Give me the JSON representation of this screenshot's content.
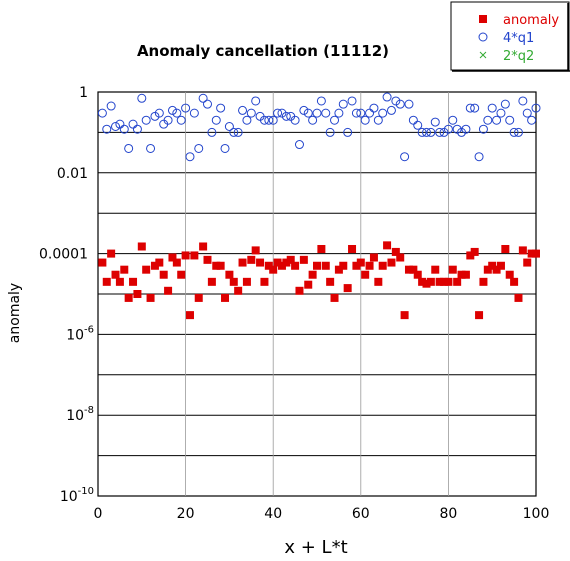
{
  "chart_data": {
    "type": "scatter",
    "title": "Anomaly cancellation (11112)",
    "xlabel": "x + L*t",
    "ylabel": "anomaly",
    "xlim": [
      0,
      100
    ],
    "ylim": [
      1e-10,
      1
    ],
    "yscale": "log",
    "x_ticks": [
      "0",
      "20",
      "40",
      "60",
      "80",
      "100"
    ],
    "y_ticks": [
      {
        "base": "1",
        "exp": ""
      },
      {
        "base": "0.01",
        "exp": ""
      },
      {
        "base": "0.0001",
        "exp": ""
      },
      {
        "base": "10",
        "exp": "-6"
      },
      {
        "base": "10",
        "exp": "-8"
      },
      {
        "base": "10",
        "exp": "-10"
      }
    ],
    "grid": true,
    "legend": "top-right",
    "series": [
      {
        "name": "anomaly",
        "marker": "filled-square",
        "color": "#dd0000",
        "x": [
          1,
          2,
          3,
          4,
          5,
          6,
          7,
          8,
          9,
          10,
          11,
          12,
          13,
          14,
          15,
          16,
          17,
          18,
          19,
          20,
          21,
          22,
          23,
          24,
          25,
          26,
          27,
          28,
          29,
          30,
          31,
          32,
          33,
          34,
          35,
          36,
          37,
          38,
          39,
          40,
          41,
          42,
          43,
          44,
          45,
          46,
          47,
          48,
          49,
          50,
          51,
          52,
          53,
          54,
          55,
          56,
          57,
          58,
          59,
          60,
          61,
          62,
          63,
          64,
          65,
          66,
          67,
          68,
          69,
          70,
          71,
          72,
          73,
          74,
          75,
          76,
          77,
          78,
          79,
          80,
          81,
          82,
          83,
          84,
          85,
          86,
          87,
          88,
          89,
          90,
          91,
          92,
          93,
          94,
          95,
          96,
          97,
          98,
          99,
          100
        ],
        "y": [
          6e-05,
          2e-05,
          0.0001,
          3e-05,
          2e-05,
          4e-05,
          8e-06,
          2e-05,
          1e-05,
          0.00015,
          4e-05,
          8e-06,
          5e-05,
          6e-05,
          3e-05,
          1.2e-05,
          8e-05,
          6e-05,
          3e-05,
          9e-05,
          3e-06,
          9e-05,
          8e-06,
          0.00015,
          7e-05,
          2e-05,
          5e-05,
          5e-05,
          8e-06,
          3e-05,
          2e-05,
          1.2e-05,
          6e-05,
          2e-05,
          7e-05,
          0.00012,
          6e-05,
          2e-05,
          5e-05,
          4e-05,
          6e-05,
          5e-05,
          6e-05,
          7e-05,
          5e-05,
          1.2e-05,
          7e-05,
          1.7e-05,
          3e-05,
          5e-05,
          0.00013,
          5e-05,
          2e-05,
          8e-06,
          4e-05,
          5e-05,
          1.4e-05,
          0.00013,
          5e-05,
          6e-05,
          3e-05,
          5e-05,
          8e-05,
          2e-05,
          5e-05,
          0.00016,
          6e-05,
          0.00011,
          8e-05,
          3e-06,
          4e-05,
          4e-05,
          3e-05,
          2e-05,
          1.8e-05,
          2e-05,
          4e-05,
          2e-05,
          2e-05,
          2e-05,
          4e-05,
          2e-05,
          3e-05,
          3e-05,
          9e-05,
          0.00011,
          3e-06,
          2e-05,
          4e-05,
          5e-05,
          4e-05,
          5e-05,
          0.00013,
          3e-05,
          2e-05,
          8e-06,
          0.00012,
          6e-05,
          0.0001,
          0.0001
        ]
      },
      {
        "name": "4*q1",
        "marker": "open-circle",
        "color": "#2244cc",
        "x": [
          1,
          2,
          3,
          4,
          5,
          6,
          7,
          8,
          9,
          10,
          11,
          12,
          13,
          14,
          15,
          16,
          17,
          18,
          19,
          20,
          21,
          22,
          23,
          24,
          25,
          26,
          27,
          28,
          29,
          30,
          31,
          32,
          33,
          34,
          35,
          36,
          37,
          38,
          39,
          40,
          41,
          42,
          43,
          44,
          45,
          46,
          47,
          48,
          49,
          50,
          51,
          52,
          53,
          54,
          55,
          56,
          57,
          58,
          59,
          60,
          61,
          62,
          63,
          64,
          65,
          66,
          67,
          68,
          69,
          70,
          71,
          72,
          73,
          74,
          75,
          76,
          77,
          78,
          79,
          80,
          81,
          82,
          83,
          84,
          85,
          86,
          87,
          88,
          89,
          90,
          91,
          92,
          93,
          94,
          95,
          96,
          97,
          98,
          99,
          100
        ],
        "y": [
          0.3,
          0.12,
          0.45,
          0.14,
          0.16,
          0.12,
          0.04,
          0.16,
          0.12,
          0.7,
          0.2,
          0.04,
          0.25,
          0.3,
          0.16,
          0.2,
          0.35,
          0.3,
          0.2,
          0.4,
          0.025,
          0.3,
          0.04,
          0.7,
          0.5,
          0.1,
          0.2,
          0.4,
          0.04,
          0.14,
          0.1,
          0.1,
          0.35,
          0.2,
          0.3,
          0.6,
          0.25,
          0.2,
          0.2,
          0.2,
          0.3,
          0.3,
          0.25,
          0.25,
          0.2,
          0.05,
          0.35,
          0.3,
          0.2,
          0.3,
          0.6,
          0.3,
          0.1,
          0.2,
          0.3,
          0.5,
          0.1,
          0.6,
          0.3,
          0.3,
          0.2,
          0.3,
          0.4,
          0.2,
          0.3,
          0.75,
          0.35,
          0.6,
          0.5,
          0.025,
          0.5,
          0.2,
          0.15,
          0.1,
          0.1,
          0.1,
          0.18,
          0.1,
          0.1,
          0.12,
          0.2,
          0.12,
          0.1,
          0.12,
          0.4,
          0.4,
          0.025,
          0.12,
          0.2,
          0.4,
          0.2,
          0.3,
          0.5,
          0.2,
          0.1,
          0.1,
          0.6,
          0.3,
          0.2,
          0.4
        ]
      },
      {
        "name": "2*q2",
        "marker": "x",
        "color": "#33aa33",
        "x": [],
        "y": []
      }
    ]
  }
}
